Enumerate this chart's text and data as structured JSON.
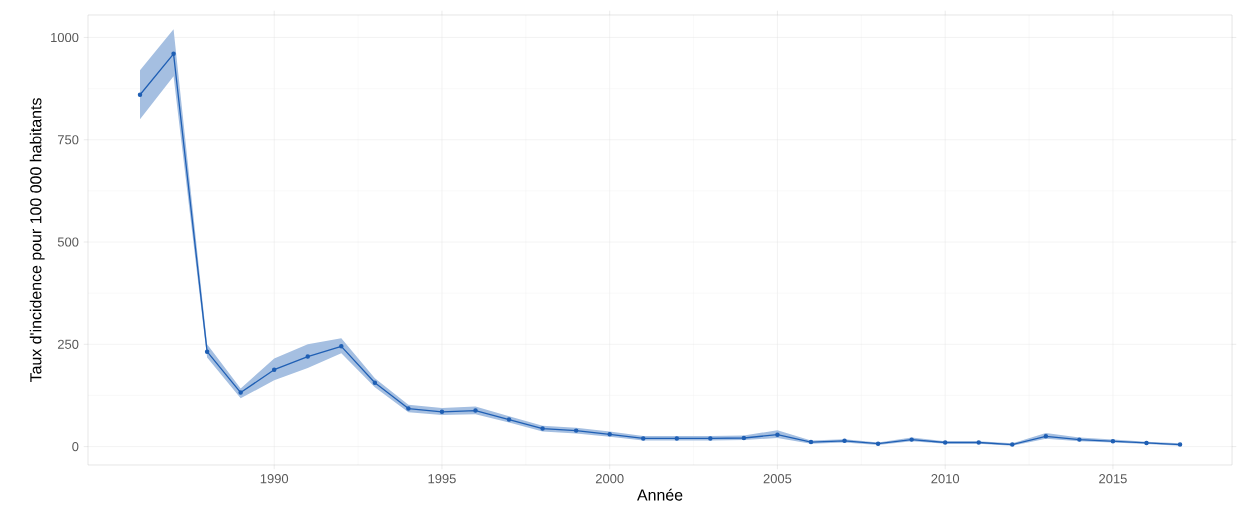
{
  "chart_data": {
    "type": "line",
    "xlabel": "Année",
    "ylabel": "Taux d'incidence pour 100 000 habitants",
    "x": [
      1986,
      1987,
      1988,
      1989,
      1990,
      1991,
      1992,
      1993,
      1994,
      1995,
      1996,
      1997,
      1998,
      1999,
      2000,
      2001,
      2002,
      2003,
      2004,
      2005,
      2006,
      2007,
      2008,
      2009,
      2010,
      2011,
      2012,
      2013,
      2014,
      2015,
      2016,
      2017
    ],
    "series": [
      {
        "color": "#1f5fb4",
        "values": [
          860,
          960,
          232,
          132,
          188,
          220,
          245,
          156,
          93,
          85,
          88,
          66,
          44,
          39,
          30,
          20,
          20,
          20,
          21,
          29,
          11,
          14,
          7,
          17,
          10,
          10,
          5,
          25,
          17,
          13,
          9,
          5
        ],
        "lower": [
          800,
          905,
          218,
          118,
          162,
          192,
          228,
          145,
          84,
          77,
          79,
          59,
          37,
          32,
          24,
          15,
          15,
          15,
          16,
          21,
          7,
          10,
          4,
          13,
          7,
          7,
          2,
          19,
          13,
          10,
          6,
          2
        ],
        "upper": [
          920,
          1020,
          250,
          142,
          215,
          250,
          265,
          167,
          102,
          94,
          98,
          74,
          51,
          46,
          37,
          26,
          26,
          26,
          27,
          40,
          15,
          18,
          10,
          22,
          13,
          13,
          8,
          33,
          22,
          17,
          12,
          8
        ]
      }
    ],
    "xlim": [
      1984.45,
      2018.55
    ],
    "ylim": [
      -45,
      1055
    ],
    "xticks": [
      1990,
      1995,
      2000,
      2005,
      2010,
      2015
    ],
    "yticks": [
      0,
      250,
      500,
      750,
      1000
    ],
    "grid": true,
    "marker": "circle",
    "line_style": "solid"
  }
}
